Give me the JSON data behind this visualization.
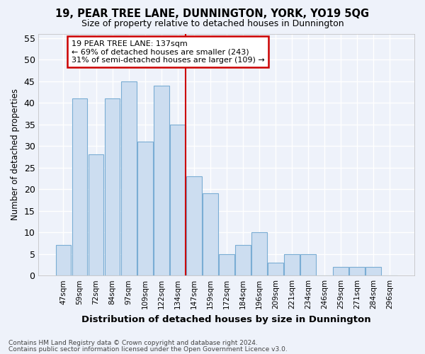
{
  "title1": "19, PEAR TREE LANE, DUNNINGTON, YORK, YO19 5QG",
  "title2": "Size of property relative to detached houses in Dunnington",
  "xlabel": "Distribution of detached houses by size in Dunnington",
  "ylabel": "Number of detached properties",
  "categories": [
    "47sqm",
    "59sqm",
    "72sqm",
    "84sqm",
    "97sqm",
    "109sqm",
    "122sqm",
    "134sqm",
    "147sqm",
    "159sqm",
    "172sqm",
    "184sqm",
    "196sqm",
    "209sqm",
    "221sqm",
    "234sqm",
    "246sqm",
    "259sqm",
    "271sqm",
    "284sqm",
    "296sqm"
  ],
  "values": [
    7,
    41,
    28,
    41,
    45,
    31,
    44,
    35,
    23,
    19,
    5,
    7,
    10,
    3,
    5,
    5,
    0,
    2,
    2,
    2,
    0
  ],
  "bar_color": "#ccddf0",
  "bar_edge_color": "#7aadd4",
  "vline_x": 7.5,
  "vline_color": "#cc0000",
  "annotation_line1": "19 PEAR TREE LANE: 137sqm",
  "annotation_line2": "← 69% of detached houses are smaller (243)",
  "annotation_line3": "31% of semi-detached houses are larger (109) →",
  "annotation_box_color": "#cc0000",
  "background_color": "#eef2fa",
  "grid_color": "#ffffff",
  "ylim": [
    0,
    56
  ],
  "yticks": [
    0,
    5,
    10,
    15,
    20,
    25,
    30,
    35,
    40,
    45,
    50,
    55
  ],
  "footer1": "Contains HM Land Registry data © Crown copyright and database right 2024.",
  "footer2": "Contains public sector information licensed under the Open Government Licence v3.0."
}
